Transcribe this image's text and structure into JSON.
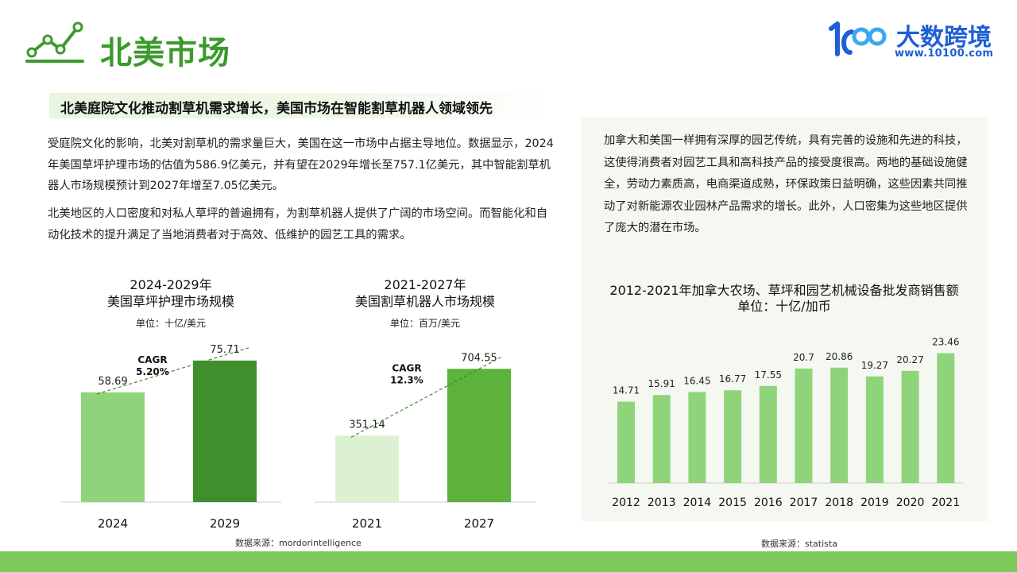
{
  "header": {
    "title": "北美市场",
    "brand_name": "大数跨境",
    "brand_url": "www.10100.com",
    "logo_mark": "10O"
  },
  "banner": {
    "heading": "北美庭院文化推动割草机需求增长，美国市场在智能割草机器人领域领先"
  },
  "left_text": {
    "paragraph_1": "受庭院文化的影响，北美对割草机的需求量巨大，美国在这一市场中占据主导地位。数据显示，2024年美国草坪护理市场的估值为586.9亿美元，并有望在2029年增长至757.1亿美元，其中智能割草机器人市场规模预计到2027年增至7.05亿美元。",
    "paragraph_2": "北美地区的人口密度和对私人草坪的普遍拥有，为割草机器人提供了广阔的市场空间。而智能化和自动化技术的提升满足了当地消费者对于高效、低维护的园艺工具的需求。"
  },
  "right_text": {
    "paragraph": "加拿大和美国一样拥有深厚的园艺传统，具有完善的设施和先进的科技，这使得消费者对园艺工具和高科技产品的接受度很高。两地的基础设施健全，劳动力素质高，电商渠道成熟，环保政策日益明确，这些因素共同推动了对新能源农业园林产品需求的增长。此外，人口密集为这些地区提供了庞大的潜在市场。"
  },
  "sources": {
    "left": "数据来源：mordorintelligence",
    "right": "数据来源：statista"
  },
  "colors": {
    "accent_green": "#3c9a2c",
    "brand_blue": "#1e5fd6",
    "bar_light": "#8fd47a",
    "bar_dark": "#3f8f2c",
    "bar_pale": "#dcf1d1",
    "bar_mid": "#5cb23a",
    "bottom_bar": "#7cc95a"
  },
  "chart_data": [
    {
      "type": "bar",
      "title_line1": "2024-2029年",
      "title_line2": "美国草坪护理市场规模",
      "unit": "单位：十亿/美元",
      "categories": [
        "2024",
        "2029"
      ],
      "values": [
        58.69,
        75.71
      ],
      "labels": [
        "58.69",
        "75.71"
      ],
      "cagr_label": "CAGR",
      "cagr_value": "5.20%",
      "ylim": [
        0,
        85
      ]
    },
    {
      "type": "bar",
      "title_line1": "2021-2027年",
      "title_line2": "美国割草机器人市场规模",
      "unit": "单位：百万/美元",
      "categories": [
        "2021",
        "2027"
      ],
      "values": [
        351.14,
        704.55
      ],
      "labels": [
        "351.14",
        "704.55"
      ],
      "cagr_label": "CAGR",
      "cagr_value": "12.3%",
      "ylim": [
        0,
        840
      ]
    },
    {
      "type": "bar",
      "title_line1": "2012-2021年加拿大农场、草坪和园艺机械设备批发商销售额",
      "title_line2": "单位：十亿/加币",
      "categories": [
        "2012",
        "2013",
        "2014",
        "2015",
        "2016",
        "2017",
        "2018",
        "2019",
        "2020",
        "2021"
      ],
      "values": [
        14.71,
        15.91,
        16.45,
        16.77,
        17.55,
        20.7,
        20.86,
        19.27,
        20.27,
        23.46
      ],
      "labels": [
        "14.71",
        "15.91",
        "16.45",
        "16.77",
        "17.55",
        "20.7",
        "20.86",
        "19.27",
        "20.27",
        "23.46"
      ],
      "ylim": [
        0,
        27
      ]
    }
  ]
}
